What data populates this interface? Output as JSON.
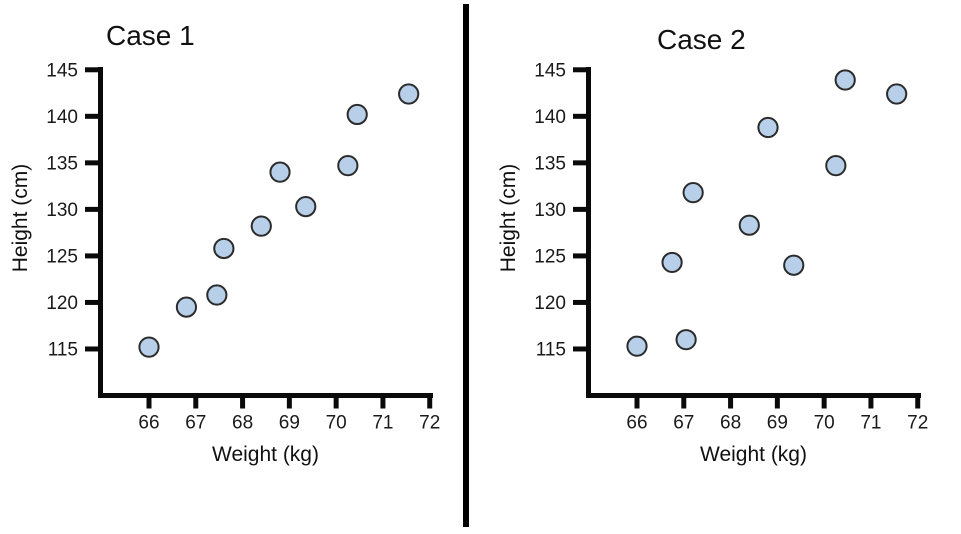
{
  "figure": {
    "background": "#ffffff",
    "divider_color": "#000000"
  },
  "chart_data": [
    {
      "type": "scatter",
      "title": "Case 1",
      "xlabel": "Weight (kg)",
      "ylabel": "Height (cm)",
      "xticks": [
        66,
        67,
        68,
        69,
        70,
        71,
        72
      ],
      "yticks": [
        115,
        120,
        125,
        130,
        135,
        140,
        145
      ],
      "xlim": [
        64.91,
        72.07
      ],
      "ylim": [
        110.0,
        145.3
      ],
      "grid": false,
      "legend": false,
      "axis_color": "#0a0a0a",
      "text_color": "#1a1a1a",
      "marker": {
        "shape": "circle",
        "radius": 9.6,
        "fill": "#b8cfe9",
        "stroke": "#2b2b2b",
        "stroke_width": 2
      },
      "points": [
        [
          66.0,
          115.2
        ],
        [
          66.8,
          119.5
        ],
        [
          67.45,
          120.8
        ],
        [
          67.6,
          125.8
        ],
        [
          68.4,
          128.2
        ],
        [
          68.8,
          134.0
        ],
        [
          69.35,
          130.3
        ],
        [
          70.25,
          134.7
        ],
        [
          70.45,
          140.2
        ],
        [
          71.55,
          142.4
        ]
      ]
    },
    {
      "type": "scatter",
      "title": "Case 2",
      "xlabel": "Weight (kg)",
      "ylabel": "Height (cm)",
      "xticks": [
        66,
        67,
        68,
        69,
        70,
        71,
        72
      ],
      "yticks": [
        115,
        120,
        125,
        130,
        135,
        140,
        145
      ],
      "xlim": [
        64.91,
        72.07
      ],
      "ylim": [
        110.0,
        145.3
      ],
      "grid": false,
      "legend": false,
      "axis_color": "#0a0a0a",
      "text_color": "#1a1a1a",
      "marker": {
        "shape": "circle",
        "radius": 9.6,
        "fill": "#b8cfe9",
        "stroke": "#2b2b2b",
        "stroke_width": 2
      },
      "points": [
        [
          66.0,
          115.3
        ],
        [
          66.75,
          124.3
        ],
        [
          67.05,
          116.0
        ],
        [
          67.2,
          131.8
        ],
        [
          68.4,
          128.3
        ],
        [
          68.8,
          138.8
        ],
        [
          69.35,
          124.0
        ],
        [
          70.25,
          134.7
        ],
        [
          70.45,
          143.9
        ],
        [
          71.55,
          142.4
        ]
      ]
    }
  ]
}
